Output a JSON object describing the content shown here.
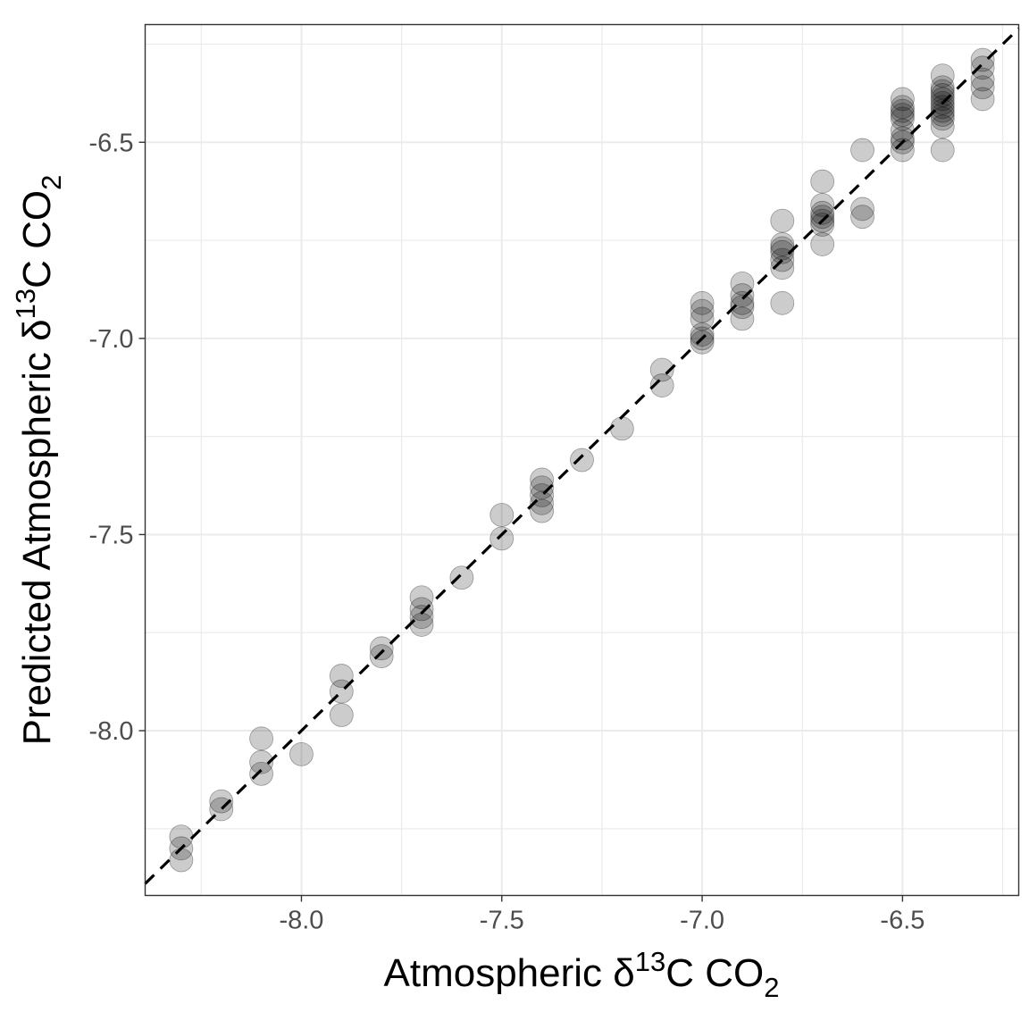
{
  "chart_data": {
    "type": "scatter",
    "title": "",
    "xlabel": {
      "prefix": "Atmospheric δ",
      "sup": "13",
      "mid": "C CO",
      "sub": "2"
    },
    "ylabel": {
      "prefix": "Predicted Atmospheric δ",
      "sup": "13",
      "mid": "C CO",
      "sub": "2"
    },
    "xlim": [
      -8.39,
      -6.21
    ],
    "ylim": [
      -8.42,
      -6.2
    ],
    "x_ticks": [
      -8.0,
      -7.5,
      -7.0,
      -6.5
    ],
    "x_tick_labels": [
      "-8.0",
      "-7.5",
      "-7.0",
      "-6.5"
    ],
    "y_ticks": [
      -8.0,
      -7.5,
      -7.0,
      -6.5
    ],
    "y_tick_labels": [
      "-8.0",
      "-7.5",
      "-7.0",
      "-6.5"
    ],
    "grid": true,
    "reference_line": {
      "style": "dashed",
      "slope": 1,
      "intercept": 0,
      "color": "#000000"
    },
    "point_color": "#000000",
    "point_opacity": 0.2,
    "points": [
      {
        "x": -8.3,
        "y": -8.27
      },
      {
        "x": -8.3,
        "y": -8.3
      },
      {
        "x": -8.3,
        "y": -8.33
      },
      {
        "x": -8.2,
        "y": -8.18
      },
      {
        "x": -8.2,
        "y": -8.2
      },
      {
        "x": -8.1,
        "y": -8.02
      },
      {
        "x": -8.1,
        "y": -8.08
      },
      {
        "x": -8.1,
        "y": -8.11
      },
      {
        "x": -8.0,
        "y": -8.06
      },
      {
        "x": -7.9,
        "y": -7.86
      },
      {
        "x": -7.9,
        "y": -7.9
      },
      {
        "x": -7.9,
        "y": -7.96
      },
      {
        "x": -7.8,
        "y": -7.79
      },
      {
        "x": -7.8,
        "y": -7.81
      },
      {
        "x": -7.7,
        "y": -7.66
      },
      {
        "x": -7.7,
        "y": -7.69
      },
      {
        "x": -7.7,
        "y": -7.71
      },
      {
        "x": -7.7,
        "y": -7.73
      },
      {
        "x": -7.6,
        "y": -7.61
      },
      {
        "x": -7.5,
        "y": -7.45
      },
      {
        "x": -7.5,
        "y": -7.51
      },
      {
        "x": -7.4,
        "y": -7.36
      },
      {
        "x": -7.4,
        "y": -7.38
      },
      {
        "x": -7.4,
        "y": -7.4
      },
      {
        "x": -7.4,
        "y": -7.42
      },
      {
        "x": -7.4,
        "y": -7.44
      },
      {
        "x": -7.3,
        "y": -7.31
      },
      {
        "x": -7.2,
        "y": -7.23
      },
      {
        "x": -7.1,
        "y": -7.08
      },
      {
        "x": -7.1,
        "y": -7.12
      },
      {
        "x": -7.0,
        "y": -6.91
      },
      {
        "x": -7.0,
        "y": -6.93
      },
      {
        "x": -7.0,
        "y": -6.95
      },
      {
        "x": -7.0,
        "y": -6.99
      },
      {
        "x": -7.0,
        "y": -7.0
      },
      {
        "x": -7.0,
        "y": -7.01
      },
      {
        "x": -6.9,
        "y": -6.86
      },
      {
        "x": -6.9,
        "y": -6.89
      },
      {
        "x": -6.9,
        "y": -6.91
      },
      {
        "x": -6.9,
        "y": -6.92
      },
      {
        "x": -6.9,
        "y": -6.95
      },
      {
        "x": -6.8,
        "y": -6.7
      },
      {
        "x": -6.8,
        "y": -6.76
      },
      {
        "x": -6.8,
        "y": -6.77
      },
      {
        "x": -6.8,
        "y": -6.78
      },
      {
        "x": -6.8,
        "y": -6.8
      },
      {
        "x": -6.8,
        "y": -6.82
      },
      {
        "x": -6.8,
        "y": -6.91
      },
      {
        "x": -6.7,
        "y": -6.6
      },
      {
        "x": -6.7,
        "y": -6.66
      },
      {
        "x": -6.7,
        "y": -6.68
      },
      {
        "x": -6.7,
        "y": -6.69
      },
      {
        "x": -6.7,
        "y": -6.7
      },
      {
        "x": -6.7,
        "y": -6.71
      },
      {
        "x": -6.7,
        "y": -6.76
      },
      {
        "x": -6.6,
        "y": -6.52
      },
      {
        "x": -6.6,
        "y": -6.67
      },
      {
        "x": -6.6,
        "y": -6.69
      },
      {
        "x": -6.5,
        "y": -6.39
      },
      {
        "x": -6.5,
        "y": -6.41
      },
      {
        "x": -6.5,
        "y": -6.42
      },
      {
        "x": -6.5,
        "y": -6.43
      },
      {
        "x": -6.5,
        "y": -6.44
      },
      {
        "x": -6.5,
        "y": -6.47
      },
      {
        "x": -6.5,
        "y": -6.49
      },
      {
        "x": -6.5,
        "y": -6.5
      },
      {
        "x": -6.5,
        "y": -6.52
      },
      {
        "x": -6.4,
        "y": -6.33
      },
      {
        "x": -6.4,
        "y": -6.36
      },
      {
        "x": -6.4,
        "y": -6.37
      },
      {
        "x": -6.4,
        "y": -6.38
      },
      {
        "x": -6.4,
        "y": -6.39
      },
      {
        "x": -6.4,
        "y": -6.4
      },
      {
        "x": -6.4,
        "y": -6.41
      },
      {
        "x": -6.4,
        "y": -6.42
      },
      {
        "x": -6.4,
        "y": -6.43
      },
      {
        "x": -6.4,
        "y": -6.44
      },
      {
        "x": -6.4,
        "y": -6.46
      },
      {
        "x": -6.4,
        "y": -6.52
      },
      {
        "x": -6.3,
        "y": -6.29
      },
      {
        "x": -6.3,
        "y": -6.31
      },
      {
        "x": -6.3,
        "y": -6.34
      },
      {
        "x": -6.3,
        "y": -6.36
      },
      {
        "x": -6.3,
        "y": -6.39
      }
    ]
  }
}
